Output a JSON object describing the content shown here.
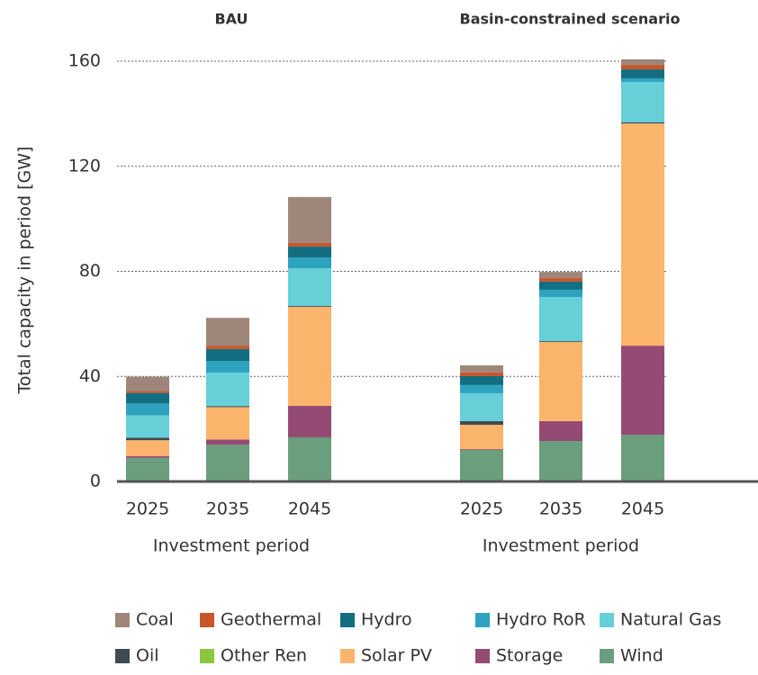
{
  "chart_data": {
    "type": "bar",
    "stacked": true,
    "ylabel": "Total capacity in period [GW]",
    "ylim": [
      0,
      160
    ],
    "yticks": [
      0,
      40,
      80,
      120,
      160
    ],
    "grid": true,
    "panels": [
      {
        "title": "BAU",
        "xlabel": "Investment period",
        "categories": [
          "2025",
          "2035",
          "2045"
        ]
      },
      {
        "title": "Basin-constrained scenario",
        "xlabel": "Investment period",
        "categories": [
          "2025",
          "2035",
          "2045"
        ]
      }
    ],
    "series": [
      {
        "name": "Coal",
        "color": "#9e877a",
        "values": [
          5.5,
          10.6,
          17.5,
          2.7,
          2.4,
          2.1
        ]
      },
      {
        "name": "Geothermal",
        "color": "#c8562a",
        "values": [
          0.7,
          1.3,
          1.4,
          1.4,
          1.3,
          1.7
        ]
      },
      {
        "name": "Hydro",
        "color": "#136e82",
        "values": [
          4,
          4.5,
          4.1,
          3.4,
          3.1,
          3.4
        ]
      },
      {
        "name": "Hydro RoR",
        "color": "#2ea3bf",
        "values": [
          4.5,
          4.5,
          4.1,
          3.1,
          2.8,
          1.4
        ]
      },
      {
        "name": "Natural Gas",
        "color": "#66cfd8",
        "values": [
          8.5,
          12.7,
          14.4,
          10.6,
          16.8,
          15.4
        ]
      },
      {
        "name": "Oil",
        "color": "#3f4a50",
        "values": [
          1,
          0.4,
          0.3,
          1.4,
          0.3,
          0.4
        ]
      },
      {
        "name": "Other Ren",
        "color": "#8cc63f",
        "values": [
          0,
          0,
          0,
          0,
          0,
          0
        ]
      },
      {
        "name": "Solar PV",
        "color": "#fbb46b",
        "values": [
          6,
          12.3,
          37.7,
          9.3,
          30.1,
          84.6
        ]
      },
      {
        "name": "Storage",
        "color": "#954a73",
        "values": [
          0.7,
          2,
          12,
          0.3,
          7.6,
          33.9
        ]
      },
      {
        "name": "Wind",
        "color": "#6a9e7c",
        "values": [
          9,
          14,
          16.8,
          12,
          15.4,
          17.8
        ]
      }
    ]
  }
}
